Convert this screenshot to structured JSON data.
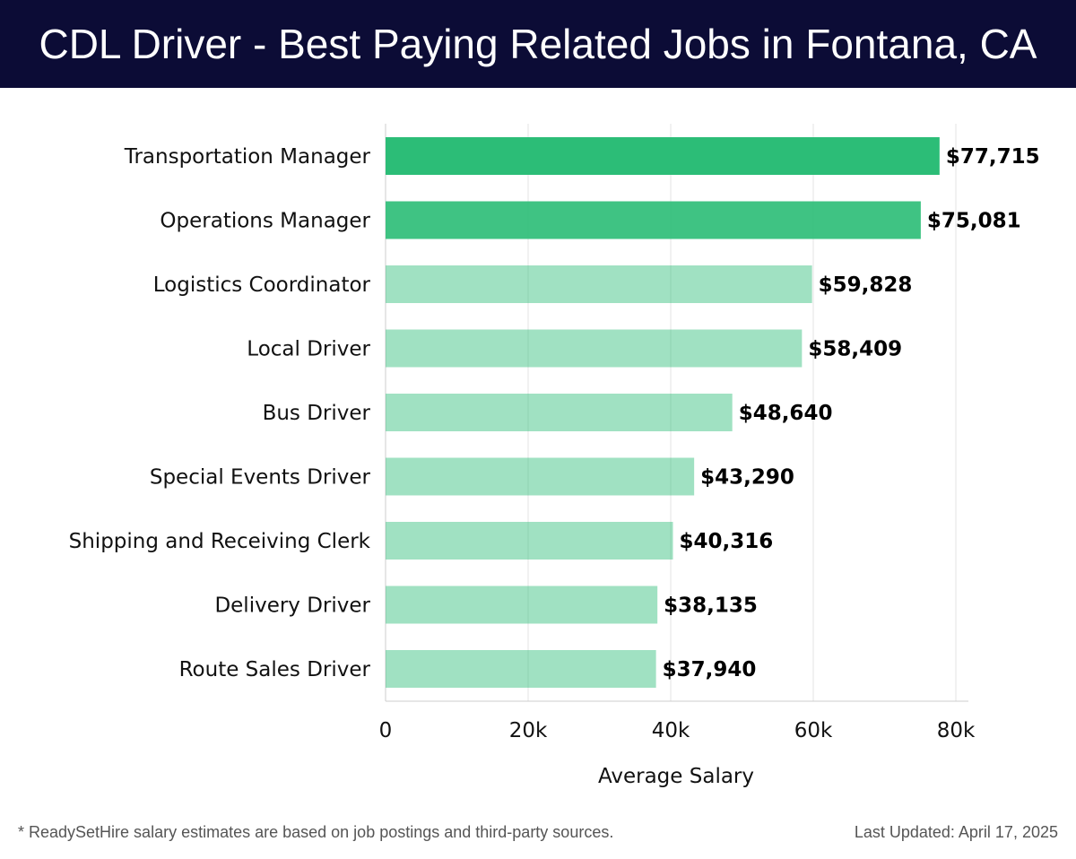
{
  "header": {
    "title": "CDL Driver - Best Paying Related Jobs in Fontana, CA"
  },
  "chart_data": {
    "type": "bar",
    "orientation": "horizontal",
    "title": "CDL Driver - Best Paying Related Jobs in Fontana, CA",
    "xlabel": "Average Salary",
    "ylabel": "",
    "xlim": [
      0,
      80000
    ],
    "xticks": [
      0,
      20000,
      40000,
      60000,
      80000
    ],
    "xtick_labels": [
      "0",
      "20k",
      "40k",
      "60k",
      "80k"
    ],
    "grid": true,
    "categories": [
      "Transportation Manager",
      "Operations Manager",
      "Logistics Coordinator",
      "Local Driver",
      "Bus Driver",
      "Special Events Driver",
      "Shipping and Receiving Clerk",
      "Delivery Driver",
      "Route Sales Driver"
    ],
    "values": [
      77715,
      75081,
      59828,
      58409,
      48640,
      43290,
      40316,
      38135,
      37940
    ],
    "value_labels": [
      "$77,715",
      "$75,081",
      "$59,828",
      "$58,409",
      "$48,640",
      "$43,290",
      "$40,316",
      "$38,135",
      "$37,940"
    ],
    "colors": {
      "bar_dark": "#2cbd77",
      "bar_light": "#5bd095",
      "grid": "#e3e3e3",
      "axis": "#cccccc",
      "text": "#111111",
      "label": "#000000"
    }
  },
  "footer": {
    "note": "* ReadySetHire salary estimates are based on job postings and third-party sources.",
    "updated": "Last Updated: April 17, 2025"
  }
}
